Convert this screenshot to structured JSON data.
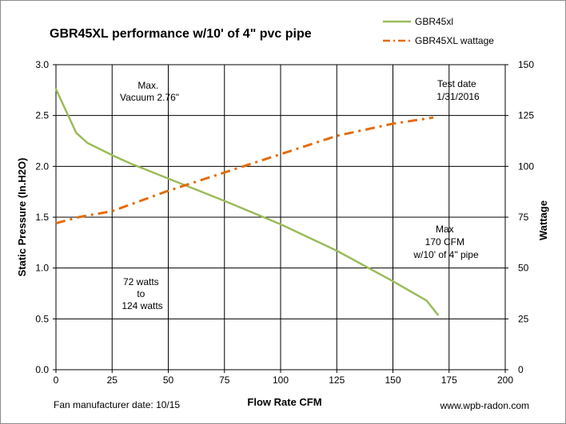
{
  "chart_data": {
    "type": "line",
    "title": "GBR45XL  performance w/10' of 4\" pvc pipe",
    "xlabel": "Flow Rate CFM",
    "ylabel": "Static Pressure (In.H2O)",
    "y2label": "Wattage",
    "xlim": [
      0,
      200
    ],
    "ylim": [
      0,
      3
    ],
    "y2lim": [
      0,
      150
    ],
    "x_ticks": [
      "0",
      "25",
      "50",
      "75",
      "100",
      "125",
      "150",
      "175",
      "200"
    ],
    "y_ticks": [
      "0.0",
      "0.5",
      "1.0",
      "1.5",
      "2.0",
      "2.5",
      "3.0"
    ],
    "y2_ticks": [
      "0",
      "25",
      "50",
      "75",
      "100",
      "125",
      "150"
    ],
    "grid": true,
    "legend_position": "top-right",
    "series": [
      {
        "name": "GBR45xl",
        "axis": "left",
        "color": "#9bbb59",
        "style": "solid",
        "x": [
          0,
          9,
          14,
          25,
          33,
          50,
          75,
          100,
          125,
          150,
          165,
          170
        ],
        "y": [
          2.76,
          2.33,
          2.23,
          2.11,
          2.03,
          1.88,
          1.66,
          1.43,
          1.17,
          0.87,
          0.68,
          0.54
        ]
      },
      {
        "name": "GBR45XL wattage",
        "axis": "right",
        "color": "#e46c0a",
        "style": "dashdot",
        "x": [
          0,
          10,
          25,
          50,
          75,
          100,
          125,
          150,
          168
        ],
        "y": [
          72,
          75,
          78,
          88,
          97,
          106,
          115,
          121,
          124
        ]
      }
    ],
    "annotations": [
      {
        "lines": [
          "Max.",
          "Vacuum 2.76\""
        ]
      },
      {
        "lines": [
          "Test date",
          "1/31/2016"
        ]
      },
      {
        "lines": [
          "Max",
          "170 CFM",
          "w/10' of 4\" pipe"
        ]
      },
      {
        "lines": [
          "72 watts",
          "to",
          "124 watts"
        ]
      }
    ],
    "footer_left": "Fan manufacturer date: 10/15",
    "footer_right": "www.wpb-radon.com"
  }
}
